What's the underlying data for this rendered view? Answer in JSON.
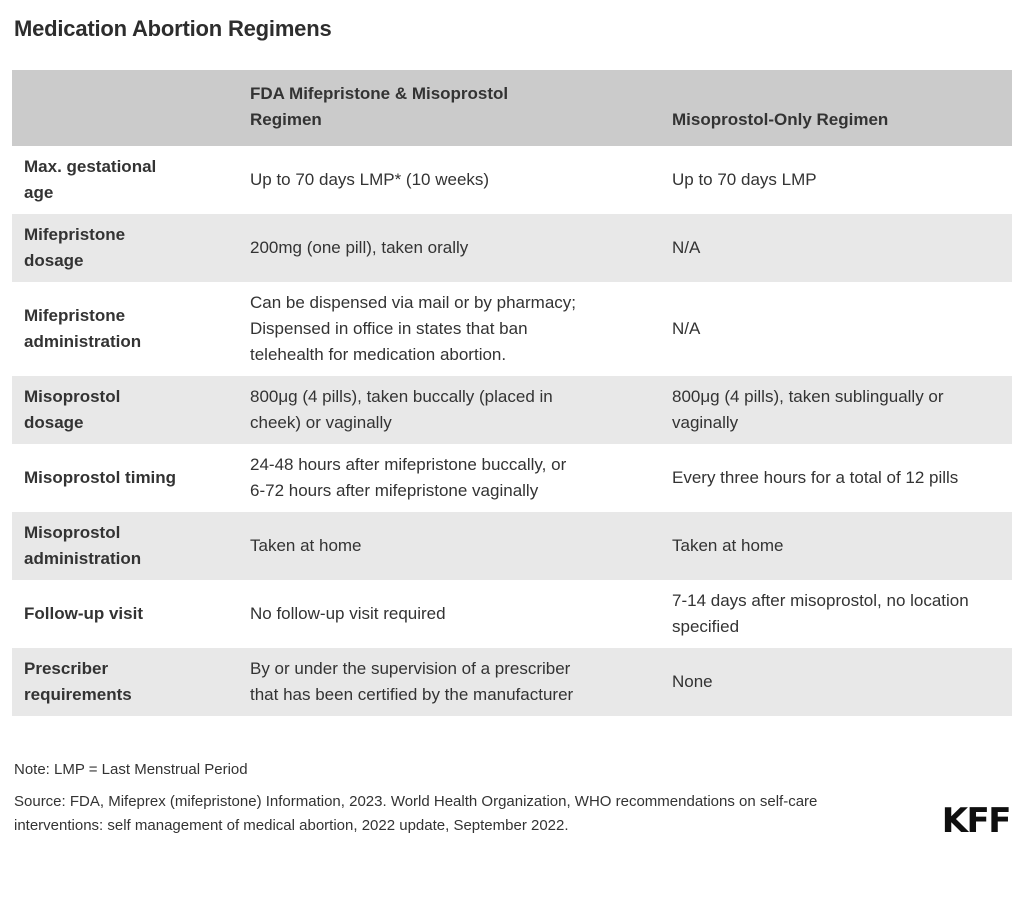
{
  "title": "Medication Abortion Regimens",
  "chart_data": {
    "type": "table",
    "title": "Medication Abortion Regimens",
    "columns": {
      "label": "",
      "fda": "FDA Mifepristone & Misoprostol Regimen",
      "miso": "Misoprostol-Only Regimen"
    },
    "rows": [
      {
        "label": "Max. gestational\nage",
        "fda": "Up to 70 days LMP* (10 weeks)",
        "miso": "Up to 70 days LMP"
      },
      {
        "label": "Mifepristone\ndosage",
        "fda": "200mg (one pill), taken orally",
        "miso": "N/A"
      },
      {
        "label": "Mifepristone\nadministration",
        "fda": "Can be dispensed via mail or by pharmacy; Dispensed in office in states that ban telehealth for medication abortion.",
        "miso": "N/A"
      },
      {
        "label": "Misoprostol\ndosage",
        "fda": "800μg (4 pills), taken buccally (placed in cheek) or vaginally",
        "miso": "800μg (4 pills), taken sublingually or vaginally"
      },
      {
        "label": "Misoprostol timing",
        "fda": "24-48 hours after mifepristone buccally, or 6-72 hours after mifepristone vaginally",
        "miso": "Every three hours for a total of 12 pills"
      },
      {
        "label": "Misoprostol\nadministration",
        "fda": "Taken at home",
        "miso": "Taken at home"
      },
      {
        "label": "Follow-up visit",
        "fda": "No follow-up visit required",
        "miso": "7-14 days after misoprostol, no location specified"
      },
      {
        "label": "Prescriber\nrequirements",
        "fda": "By or under the supervision of a prescriber that has been certified by the manufacturer",
        "miso": "None"
      }
    ]
  },
  "footer": {
    "note": "Note: LMP = Last Menstrual Period",
    "source": "Source: FDA, Mifeprex (mifepristone) Information, 2023. World Health Organization, WHO recommendations on self-care interventions: self management of medical abortion, 2022 update, September 2022.",
    "logo": "KFF"
  },
  "colors": {
    "header_bg": "#cbcbcb",
    "row_alt_bg": "#e8e8e8",
    "text": "#333333",
    "logo": "#0f0f0f"
  }
}
